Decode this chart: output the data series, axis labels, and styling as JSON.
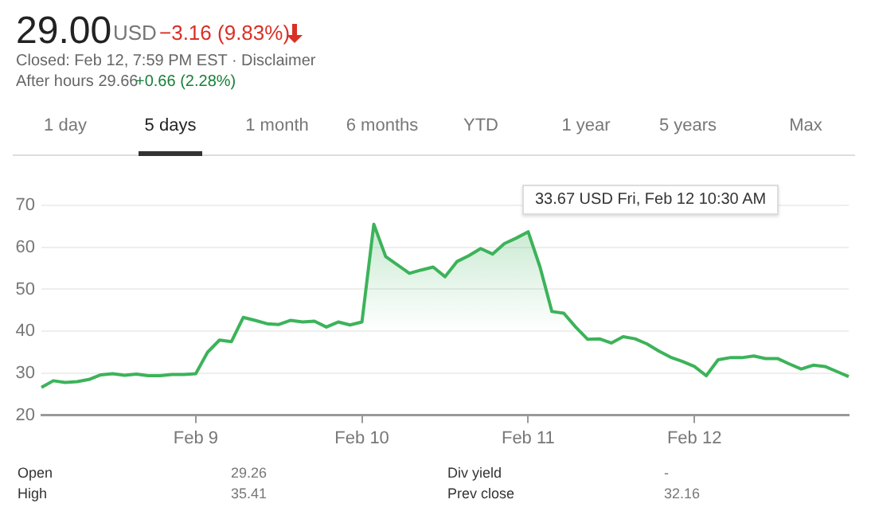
{
  "chart_data": {
    "type": "area",
    "title": "29.00",
    "annotations": [
      "USD",
      "−3.16 (9.83%)",
      "Closed: Feb 12, 7:59 PM EST · Disclaimer",
      "After hours 29.66",
      "+0.66 (2.28%)",
      "1 day",
      "5 days",
      "1 month",
      "6 months",
      "YTD",
      "1 year",
      "5 years",
      "Max",
      "Open",
      "29.26",
      "High",
      "35.41",
      "Div yield",
      "-",
      "Prev close",
      "32.16",
      "33.67 USD  Fri, Feb 12 10:30 AM"
    ],
    "categories": [
      null,
      null,
      null,
      null,
      null,
      null,
      null,
      null,
      null,
      null,
      null,
      null,
      null,
      "Feb 9",
      null,
      null,
      null,
      null,
      null,
      null,
      null,
      null,
      null,
      null,
      null,
      null,
      null,
      "Feb 10",
      null,
      null,
      null,
      null,
      null,
      null,
      null,
      null,
      null,
      null,
      null,
      null,
      null,
      "Feb 11",
      null,
      null,
      null,
      null,
      null,
      null,
      null,
      null,
      null,
      null,
      null,
      null,
      null,
      "Feb 12",
      null,
      null,
      null,
      null,
      null,
      null,
      null,
      null,
      null,
      null,
      null,
      null,
      null
    ],
    "series": [
      {
        "color": "#3cb35a",
        "values": [
          26.6,
          28.2,
          27.8,
          28.0,
          28.5,
          29.6,
          29.9,
          29.5,
          29.8,
          29.4,
          29.4,
          29.7,
          29.7,
          29.9,
          35.0,
          37.9,
          37.5,
          43.3,
          42.6,
          41.8,
          41.6,
          42.6,
          42.2,
          42.4,
          41.0,
          42.2,
          41.5,
          42.2,
          65.5,
          57.8,
          55.8,
          53.8,
          54.6,
          55.3,
          53.0,
          56.6,
          58.0,
          59.7,
          58.4,
          60.9,
          62.2,
          63.7,
          55.3,
          44.7,
          44.3,
          41.0,
          38.1,
          38.2,
          37.2,
          38.7,
          38.2,
          37.0,
          35.3,
          33.8,
          32.8,
          31.6,
          29.4,
          33.2,
          33.7,
          33.7,
          34.1,
          33.5,
          33.5,
          32.2,
          31.0,
          31.9,
          31.6,
          30.4,
          29.2
        ]
      }
    ],
    "ylim": [
      20,
      70
    ],
    "yticks": [
      20,
      30,
      40,
      50,
      60,
      70
    ],
    "grid": "y",
    "legend": false,
    "marker": "none"
  }
}
